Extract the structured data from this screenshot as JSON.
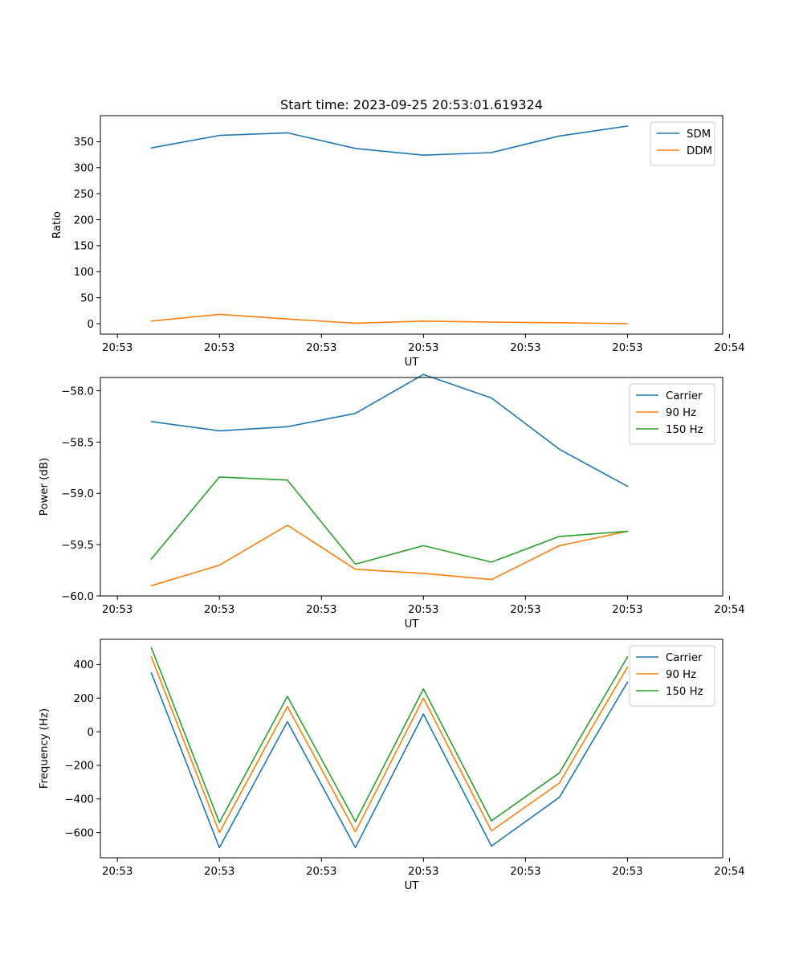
{
  "chart_data": [
    {
      "type": "line",
      "title": "Start time: 2023-09-25 20:53:01.619324",
      "xlabel": "UT",
      "ylabel": "Ratio",
      "x": [
        1,
        2,
        3,
        4,
        5,
        6,
        7,
        8
      ],
      "xlim": [
        0.25,
        9.4
      ],
      "xticks": [
        0.5,
        2,
        3.5,
        5,
        6.5,
        8,
        9.5
      ],
      "xtick_labels": [
        "20:53",
        "20:53",
        "20:53",
        "20:53",
        "20:53",
        "20:53",
        "20:54"
      ],
      "ylim": [
        -20,
        400
      ],
      "yticks": [
        0,
        50,
        100,
        150,
        200,
        250,
        300,
        350
      ],
      "ytick_labels": [
        "0",
        "50",
        "100",
        "150",
        "200",
        "250",
        "300",
        "350"
      ],
      "legend_position": "top-right",
      "series": [
        {
          "name": "SDM",
          "color": "#1f77b4",
          "values": [
            338,
            362,
            367,
            337,
            324,
            329,
            361,
            380
          ]
        },
        {
          "name": "DDM",
          "color": "#ff7f0e",
          "values": [
            5,
            18,
            9,
            1,
            5,
            3,
            2,
            0
          ]
        }
      ]
    },
    {
      "type": "line",
      "title": "",
      "xlabel": "UT",
      "ylabel": "Power (dB)",
      "x": [
        1,
        2,
        3,
        4,
        5,
        6,
        7,
        8
      ],
      "xlim": [
        0.25,
        9.4
      ],
      "xticks": [
        0.5,
        2,
        3.5,
        5,
        6.5,
        8,
        9.5
      ],
      "xtick_labels": [
        "20:53",
        "20:53",
        "20:53",
        "20:53",
        "20:53",
        "20:53",
        "20:54"
      ],
      "ylim": [
        -60,
        -57.87
      ],
      "yticks": [
        -60,
        -59.5,
        -59,
        -58.5,
        -58
      ],
      "ytick_labels": [
        "−60.0",
        "−59.5",
        "−59.0",
        "−58.5",
        "−58.0"
      ],
      "legend_position": "top-right",
      "series": [
        {
          "name": "Carrier",
          "color": "#1f77b4",
          "values": [
            -58.3,
            -58.39,
            -58.35,
            -58.22,
            -57.84,
            -58.07,
            -58.57,
            -58.93
          ]
        },
        {
          "name": "90 Hz",
          "color": "#ff7f0e",
          "values": [
            -59.9,
            -59.7,
            -59.31,
            -59.74,
            -59.78,
            -59.84,
            -59.51,
            -59.37
          ]
        },
        {
          "name": "150 Hz",
          "color": "#2ca02c",
          "values": [
            -59.64,
            -58.84,
            -58.87,
            -59.69,
            -59.51,
            -59.67,
            -59.42,
            -59.37
          ]
        }
      ]
    },
    {
      "type": "line",
      "title": "",
      "xlabel": "UT",
      "ylabel": "Frequency (Hz)",
      "x": [
        1,
        2,
        3,
        4,
        5,
        6,
        7,
        8
      ],
      "xlim": [
        0.25,
        9.4
      ],
      "xticks": [
        0.5,
        2,
        3.5,
        5,
        6.5,
        8,
        9.5
      ],
      "xtick_labels": [
        "20:53",
        "20:53",
        "20:53",
        "20:53",
        "20:53",
        "20:53",
        "20:54"
      ],
      "ylim": [
        -750,
        550
      ],
      "yticks": [
        -600,
        -400,
        -200,
        0,
        200,
        400
      ],
      "ytick_labels": [
        "−600",
        "−400",
        "−200",
        "0",
        "200",
        "400"
      ],
      "legend_position": "top-right",
      "series": [
        {
          "name": "Carrier",
          "color": "#1f77b4",
          "values": [
            350,
            -690,
            60,
            -690,
            105,
            -680,
            -390,
            295
          ]
        },
        {
          "name": "90 Hz",
          "color": "#ff7f0e",
          "values": [
            445,
            -600,
            150,
            -595,
            200,
            -590,
            -305,
            385
          ]
        },
        {
          "name": "150 Hz",
          "color": "#2ca02c",
          "values": [
            500,
            -540,
            210,
            -535,
            255,
            -530,
            -245,
            445
          ]
        }
      ]
    }
  ]
}
